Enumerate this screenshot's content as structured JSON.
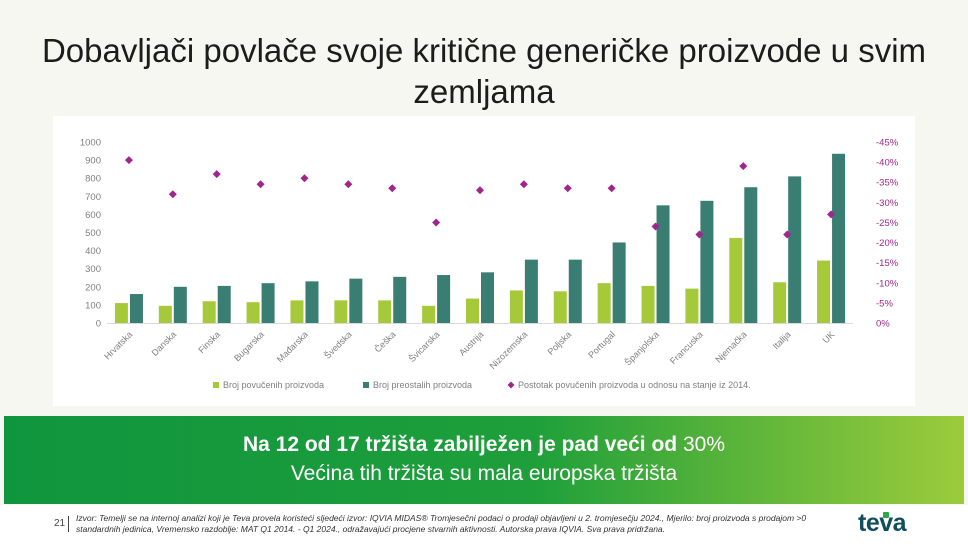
{
  "title": "Dobavljači povlače svoje kritične generičke proizvode u svim zemljama",
  "chart_data": {
    "type": "bar",
    "categories": [
      "Hrvatska",
      "Danska",
      "Finska",
      "Bugarska",
      "Mađarska",
      "Švedska",
      "Češka",
      "Švicarska",
      "Austrija",
      "Nizozemska",
      "Poljska",
      "Portugal",
      "Španjolska",
      "Francuska",
      "Njemačka",
      "Italija",
      "UK"
    ],
    "series": [
      {
        "name": "Broj povučenih proizvoda",
        "type": "bar",
        "axis": "left",
        "color": "#a6c93a",
        "values": [
          110,
          95,
          120,
          115,
          125,
          125,
          125,
          95,
          135,
          180,
          175,
          220,
          205,
          190,
          470,
          225,
          345
        ]
      },
      {
        "name": "Broj preostalih proizvoda",
        "type": "bar",
        "axis": "left",
        "color": "#3a7d73",
        "values": [
          160,
          200,
          205,
          220,
          230,
          245,
          255,
          265,
          280,
          350,
          350,
          445,
          650,
          675,
          750,
          810,
          935
        ]
      },
      {
        "name": "Postotak povučenih proizvoda u odnosu na stanje iz 2014.",
        "type": "scatter",
        "axis": "right",
        "color": "#a0258f",
        "values": [
          -40.5,
          -32,
          -37,
          -34.5,
          -36,
          -34.5,
          -33.5,
          -25,
          -33,
          -34.5,
          -33.5,
          -33.5,
          -24,
          -22,
          -39,
          -22,
          -27
        ]
      }
    ],
    "ylim": [
      0,
      1000
    ],
    "yticks": [
      0,
      100,
      200,
      300,
      400,
      500,
      600,
      700,
      800,
      900,
      1000
    ],
    "y2lim": [
      0,
      -45
    ],
    "y2ticks": [
      "0%",
      "-5%",
      "-10%",
      "-15%",
      "-20%",
      "-25%",
      "-30%",
      "-35%",
      "-40%",
      "-45%"
    ],
    "grid": false,
    "legend_position": "bottom"
  },
  "banner": {
    "line1_bold": "Na 12 od 17 tržišta zabilježen je pad veći od",
    "line1_normal": " 30%",
    "line2": "Većina tih tržišta su mala europska tržišta"
  },
  "footer": {
    "page_number": "21",
    "source": "Izvor: Temelji se na internoj analizi koji je Teva provela koristeći sljedeći izvor: IQVIA MIDAS® Tromjesečni podaci o prodaji objavljeni u 2. tromjesečju 2024., Mjerilo: broj proizvoda s prodajom >0 standardnih jedinica,  Vremensko razdoblje: MAT Q1 2014. - Q1 2024., odražavajući procjene stvarnih aktivnosti. Autorska prava IQVIA. Sva prava pridržana.",
    "logo": "teva"
  }
}
